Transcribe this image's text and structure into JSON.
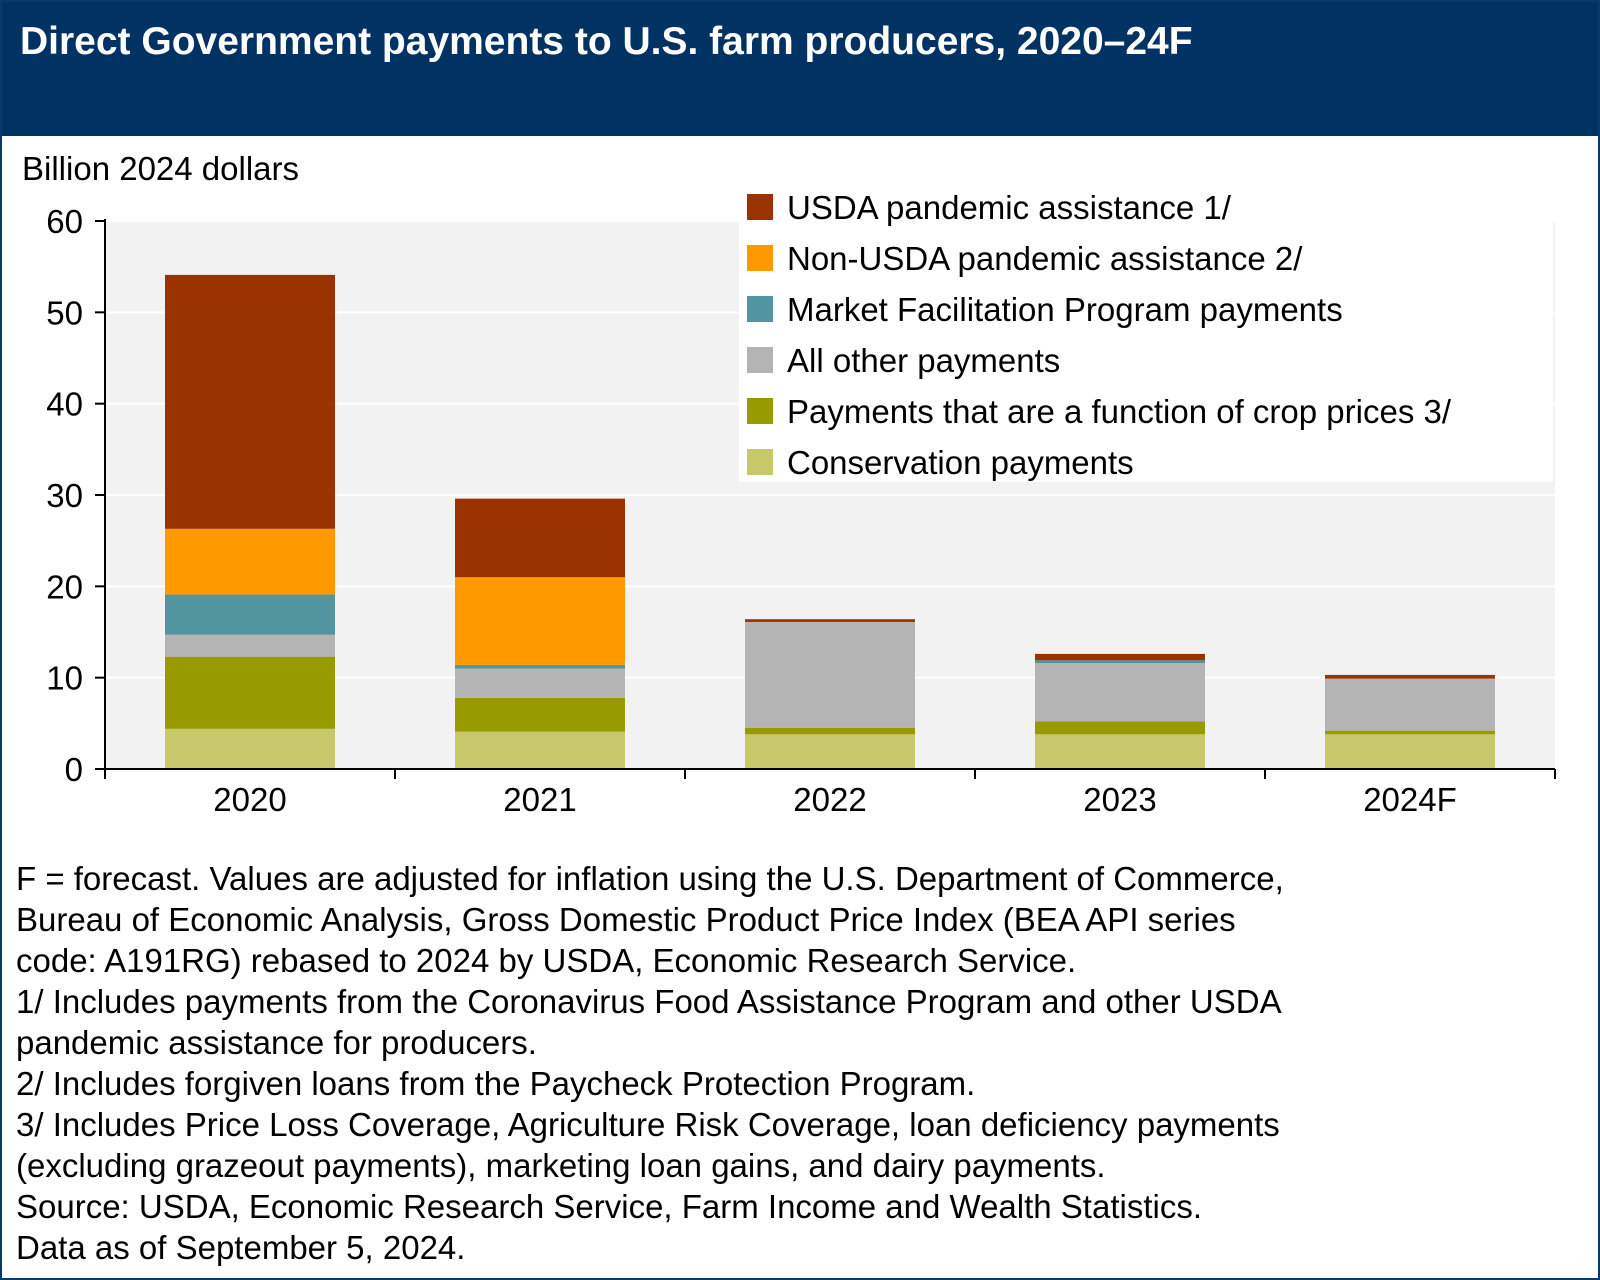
{
  "chart_data": {
    "type": "bar",
    "stacked": true,
    "title": "Direct Government payments to U.S. farm producers, 2020–24F",
    "ylabel": "Billion 2024 dollars",
    "xlabel": "",
    "ylim": [
      0,
      60
    ],
    "yticks": [
      "0",
      "10",
      "20",
      "30",
      "40",
      "50",
      "60"
    ],
    "categories": [
      "2020",
      "2021",
      "2022",
      "2023",
      "2024F"
    ],
    "grid": "horizontal",
    "legend_position": "top-right",
    "series": [
      {
        "name": "Conservation payments",
        "color": "#c7c86a",
        "values": [
          4.4,
          4.1,
          3.8,
          3.8,
          3.8
        ]
      },
      {
        "name": "Payments that are a function of crop prices 3/",
        "color": "#999900",
        "values": [
          7.9,
          3.7,
          0.7,
          1.4,
          0.4
        ]
      },
      {
        "name": "All other payments",
        "color": "#b4b4b4",
        "values": [
          2.4,
          3.2,
          11.6,
          6.4,
          5.7
        ]
      },
      {
        "name": "Market Facilitation Program payments",
        "color": "#5095a0",
        "values": [
          4.4,
          0.4,
          0.0,
          0.3,
          0.0
        ]
      },
      {
        "name": "Non-USDA pandemic assistance 2/",
        "color": "#ff9900",
        "values": [
          7.2,
          9.6,
          0.0,
          0.0,
          0.0
        ]
      },
      {
        "name": "USDA pandemic assistance 1/",
        "color": "#993300",
        "values": [
          27.8,
          8.6,
          0.3,
          0.7,
          0.4
        ]
      }
    ],
    "legend_order": [
      "USDA pandemic assistance 1/",
      "Non-USDA pandemic assistance 2/",
      "Market Facilitation Program payments",
      "All other payments",
      "Payments that are a function of crop prices 3/",
      "Conservation payments"
    ]
  },
  "notes": [
    "F = forecast. Values are adjusted for inflation using the U.S. Department of Commerce,",
    "Bureau of Economic Analysis, Gross Domestic Product Price Index (BEA API  series",
    "code: A191RG) rebased to 2024 by USDA, Economic Research Service.",
    "1/ Includes payments from the Coronavirus Food Assistance Program and other USDA",
    "pandemic assistance for producers.",
    "2/ Includes forgiven loans from the Paycheck Protection Program.",
    "3/ Includes Price Loss Coverage, Agriculture Risk Coverage, loan deficiency payments",
    "(excluding grazeout payments), marketing loan gains, and dairy payments.",
    "Source: USDA, Economic Research Service, Farm Income and Wealth Statistics.",
    "Data as of September 5, 2024."
  ],
  "colors": {
    "header_bg": "#003263",
    "plot_bg": "#f2f2f2",
    "gridline": "#ffffff"
  }
}
